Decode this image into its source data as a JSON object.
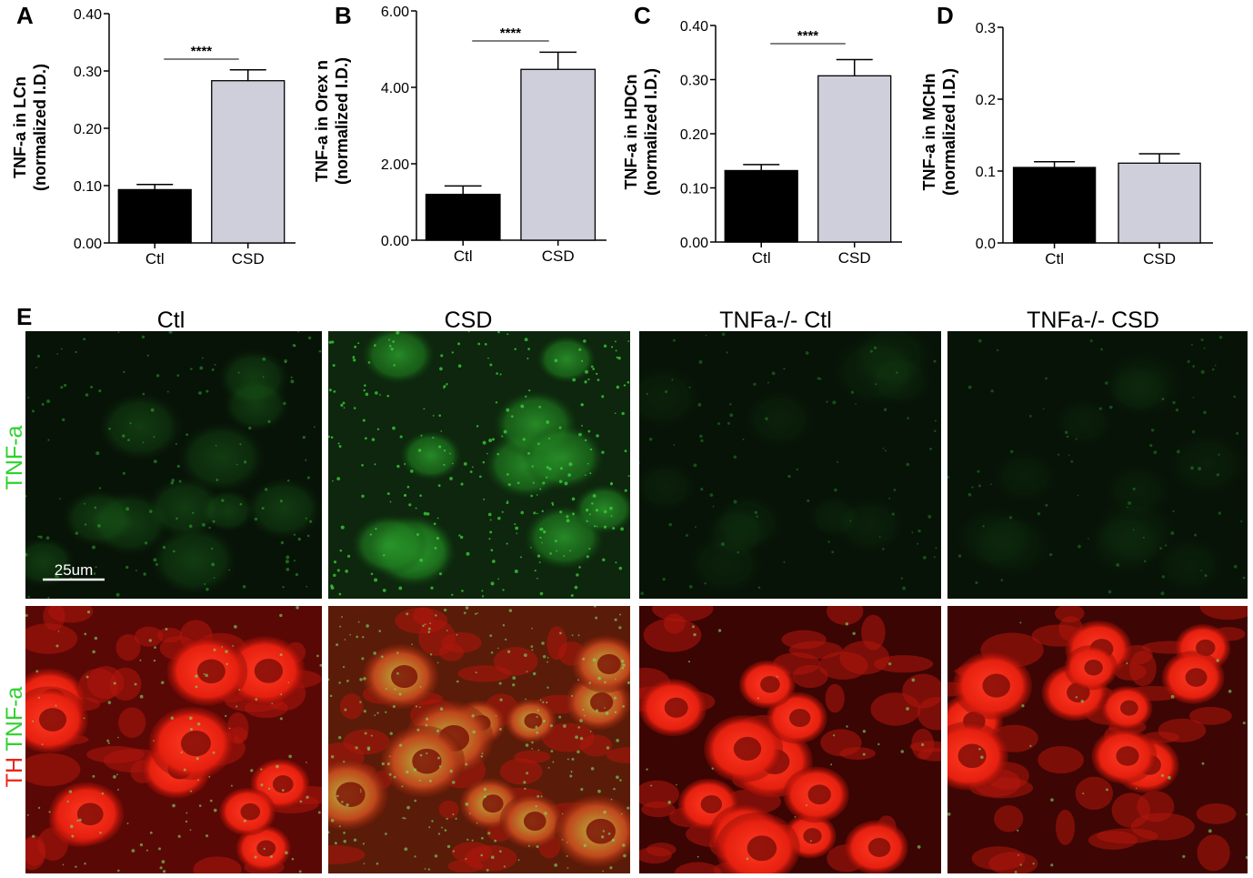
{
  "chart_data": [
    {
      "panel": "A",
      "type": "bar",
      "ylabel": [
        "TNF-a in LCn",
        "(normalized I.D.)"
      ],
      "categories": [
        "Ctl",
        "CSD"
      ],
      "values": [
        0.093,
        0.283
      ],
      "errors": [
        0.009,
        0.019
      ],
      "yticks": [
        "0.00",
        "0.10",
        "0.20",
        "0.30",
        "0.40"
      ],
      "ylim": [
        0,
        0.4
      ],
      "significance": "****",
      "colors": [
        "#000000",
        "#cfcfdc"
      ]
    },
    {
      "panel": "B",
      "type": "bar",
      "ylabel": [
        "TNF-a in Orex n",
        "(normalized I.D.)"
      ],
      "categories": [
        "Ctl",
        "CSD"
      ],
      "values": [
        1.2,
        4.47
      ],
      "errors": [
        0.22,
        0.45
      ],
      "yticks": [
        "0.00",
        "2.00",
        "4.00",
        "6.00"
      ],
      "ylim": [
        0,
        6
      ],
      "significance": "****",
      "colors": [
        "#000000",
        "#cfcfdc"
      ]
    },
    {
      "panel": "C",
      "type": "bar",
      "ylabel": [
        "TNF-a in HDCn",
        "(normalized I.D.)"
      ],
      "categories": [
        "Ctl",
        "CSD"
      ],
      "values": [
        0.132,
        0.307
      ],
      "errors": [
        0.011,
        0.03
      ],
      "yticks": [
        "0.00",
        "0.10",
        "0.20",
        "0.30",
        "0.40"
      ],
      "ylim": [
        0,
        0.4
      ],
      "significance": "****",
      "colors": [
        "#000000",
        "#cfcfdc"
      ]
    },
    {
      "panel": "D",
      "type": "bar",
      "ylabel": [
        "TNF-a in MCHn",
        "(normalized I.D.)"
      ],
      "categories": [
        "Ctl",
        "CSD"
      ],
      "values": [
        0.105,
        0.111
      ],
      "errors": [
        0.008,
        0.013
      ],
      "yticks": [
        "0.0",
        "0.1",
        "0.2",
        "0.3"
      ],
      "ylim": [
        0,
        0.3
      ],
      "significance": "",
      "colors": [
        "#000000",
        "#cfcfdc"
      ]
    }
  ],
  "micrographs": {
    "panel": "E",
    "columns": [
      "Ctl",
      "CSD",
      "TNFa-/- Ctl",
      "TNFa-/- CSD"
    ],
    "row_labels": {
      "top": "TNF-a",
      "bottom_th": "TH",
      "bottom_tnf": "TNF-a"
    },
    "scale_bar": "25um",
    "colors": {
      "green": "#2fd12f",
      "red": "#e8261a"
    }
  }
}
